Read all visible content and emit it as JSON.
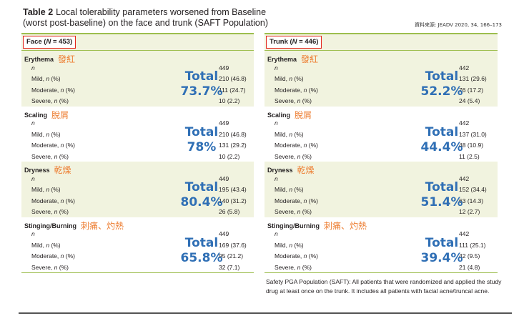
{
  "title": {
    "label": "Table 2",
    "line1": "Local tolerability parameters worsened from Baseline",
    "line2": "(worst post-baseline) on the face and trunk (SAFT Population)"
  },
  "source": "資料來源: JEADV 2020, 34, 166–173",
  "face": {
    "header_prefix": "Face (",
    "header_n": "N",
    "header_suffix": " = 453)",
    "sections": [
      {
        "name": "Erythema",
        "zh": "發紅",
        "total_label": "Total",
        "total_value": "73.7%",
        "rows": [
          {
            "label": "n",
            "value": "449"
          },
          {
            "label": "Mild, n (%)",
            "value": "210 (46.8)"
          },
          {
            "label": "Moderate, n (%)",
            "value": "111 (24.7)"
          },
          {
            "label": "Severe, n (%)",
            "value": "10 (2.2)"
          }
        ]
      },
      {
        "name": "Scaling",
        "zh": "脫屑",
        "total_label": "Total",
        "total_value": "78%",
        "rows": [
          {
            "label": "n",
            "value": "449"
          },
          {
            "label": "Mild, n (%)",
            "value": "210 (46.8)"
          },
          {
            "label": "Moderate, n (%)",
            "value": "131 (29.2)"
          },
          {
            "label": "Severe, n (%)",
            "value": "10 (2.2)"
          }
        ]
      },
      {
        "name": "Dryness",
        "zh": "乾燥",
        "total_label": "Total",
        "total_value": "80.4%",
        "rows": [
          {
            "label": "n",
            "value": "449"
          },
          {
            "label": "Mild, n (%)",
            "value": "195 (43.4)"
          },
          {
            "label": "Moderate, n (%)",
            "value": "140 (31.2)"
          },
          {
            "label": "Severe, n (%)",
            "value": "26 (5.8)"
          }
        ]
      },
      {
        "name": "Stinging/Burning",
        "zh": "刺痛、灼熱",
        "total_label": "Total",
        "total_value": "65.8%",
        "rows": [
          {
            "label": "n",
            "value": "449"
          },
          {
            "label": "Mild, n (%)",
            "value": "169 (37.6)"
          },
          {
            "label": "Moderate, n (%)",
            "value": "95 (21.2)"
          },
          {
            "label": "Severe, n (%)",
            "value": "32 (7.1)"
          }
        ]
      }
    ]
  },
  "trunk": {
    "header_prefix": "Trunk (",
    "header_n": "N",
    "header_suffix": " = 446)",
    "sections": [
      {
        "name": "Erythema",
        "zh": "發紅",
        "total_label": "Total",
        "total_value": "52.2%",
        "rows": [
          {
            "label": "n",
            "value": "442"
          },
          {
            "label": "Mild, n (%)",
            "value": "131 (29.6)"
          },
          {
            "label": "Moderate, n (%)",
            "value": "76 (17.2)"
          },
          {
            "label": "Severe, n (%)",
            "value": "24 (5.4)"
          }
        ]
      },
      {
        "name": "Scaling",
        "zh": "脫屑",
        "total_label": "Total",
        "total_value": "44.4%",
        "rows": [
          {
            "label": "n",
            "value": "442"
          },
          {
            "label": "Mild, n (%)",
            "value": "137 (31.0)"
          },
          {
            "label": "Moderate, n (%)",
            "value": "48 (10.9)"
          },
          {
            "label": "Severe, n (%)",
            "value": "11 (2.5)"
          }
        ]
      },
      {
        "name": "Dryness",
        "zh": "乾燥",
        "total_label": "Total",
        "total_value": "51.4%",
        "rows": [
          {
            "label": "n",
            "value": "442"
          },
          {
            "label": "Mild, n (%)",
            "value": "152 (34.4)"
          },
          {
            "label": "Moderate, n (%)",
            "value": "63 (14.3)"
          },
          {
            "label": "Severe, n (%)",
            "value": "12 (2.7)"
          }
        ]
      },
      {
        "name": "Stinging/Burning",
        "zh": "刺痛、灼熱",
        "total_label": "Total",
        "total_value": "39.4%",
        "rows": [
          {
            "label": "n",
            "value": "442"
          },
          {
            "label": "Mild, n (%)",
            "value": "111 (25.1)"
          },
          {
            "label": "Moderate, n (%)",
            "value": "42 (9.5)"
          },
          {
            "label": "Severe, n (%)",
            "value": "21 (4.8)"
          }
        ]
      }
    ]
  },
  "footnote": "Safety PGA Population (SAFT): All patients that were randomized and applied the study drug at least once on the trunk. It includes all patients with facial acne/truncal acne.",
  "colors": {
    "accent_green": "#9dbe4e",
    "shade": "#f1f3df",
    "highlight_red": "#e3231b",
    "chinese_orange": "#ed7d31",
    "total_blue": "#2f6fb5"
  }
}
